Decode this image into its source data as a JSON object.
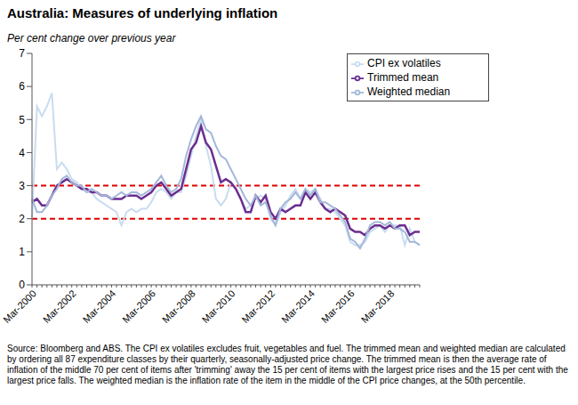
{
  "chart_data": {
    "type": "line",
    "title": "Australia: Measures of underlying inflation",
    "y_label": "Per cent change over previous year",
    "note": "Source: Bloomberg and ABS. The CPI ex volatiles excludes fruit, vegetables and fuel. The trimmed mean and weighted median are calculated by ordering all 87 expenditure classes by their quarterly, seasonally-adjusted price change. The trimmed mean is then the average rate of inflation of the middle 70 per cent of items after 'trimming' away the 15 per cent of items with the largest price rises and the 15 per cent with the largest price falls. The weighted median is the inflation rate of the item in the middle of the CPI price changes, at the 50th percentile.",
    "categories": [
      "Mar-2000",
      null,
      null,
      null,
      null,
      null,
      null,
      null,
      "Mar-2002",
      null,
      null,
      null,
      null,
      null,
      null,
      null,
      "Mar-2004",
      null,
      null,
      null,
      null,
      null,
      null,
      null,
      "Mar-2006",
      null,
      null,
      null,
      null,
      null,
      null,
      null,
      "Mar-2008",
      null,
      null,
      null,
      null,
      null,
      null,
      null,
      "Mar-2010",
      null,
      null,
      null,
      null,
      null,
      null,
      null,
      "Mar-2012",
      null,
      null,
      null,
      null,
      null,
      null,
      null,
      "Mar-2014",
      null,
      null,
      null,
      null,
      null,
      null,
      null,
      "Mar-2016",
      null,
      null,
      null,
      null,
      null,
      null,
      null,
      "Mar-2018",
      null,
      null,
      null,
      null,
      null,
      null
    ],
    "series": [
      {
        "name": "CPI ex volatiles",
        "color": "#c9dcf0",
        "values": [
          2.0,
          5.4,
          5.1,
          5.4,
          5.8,
          3.5,
          3.7,
          3.5,
          3.2,
          3.1,
          2.9,
          2.8,
          2.8,
          2.6,
          2.5,
          2.4,
          2.3,
          2.2,
          1.8,
          2.2,
          2.3,
          2.2,
          2.3,
          2.3,
          2.5,
          2.8,
          2.9,
          2.8,
          2.6,
          2.8,
          2.8,
          3.3,
          3.9,
          4.5,
          5.0,
          4.2,
          3.6,
          2.6,
          2.4,
          2.6,
          3.1,
          2.9,
          2.6,
          2.3,
          2.4,
          2.6,
          2.7,
          2.6,
          2.0,
          1.8,
          2.2,
          2.4,
          2.7,
          2.9,
          2.6,
          2.9,
          2.8,
          2.9,
          2.6,
          2.3,
          2.3,
          2.2,
          2.0,
          1.8,
          1.3,
          1.2,
          1.2,
          1.3,
          1.6,
          1.7,
          1.8,
          1.6,
          1.8,
          1.8,
          1.8,
          1.2,
          1.7,
          1.3,
          1.2
        ]
      },
      {
        "name": "Trimmed mean",
        "color": "#6b2d8f",
        "values": [
          2.5,
          2.6,
          2.4,
          2.4,
          2.7,
          3.0,
          3.1,
          3.2,
          3.1,
          3.0,
          2.9,
          2.9,
          2.8,
          2.8,
          2.7,
          2.7,
          2.6,
          2.6,
          2.6,
          2.7,
          2.7,
          2.7,
          2.6,
          2.7,
          2.8,
          3.0,
          3.1,
          2.9,
          2.7,
          2.8,
          2.9,
          3.5,
          4.1,
          4.3,
          4.8,
          4.3,
          4.1,
          3.6,
          3.1,
          3.2,
          3.1,
          2.9,
          2.6,
          2.2,
          2.2,
          2.7,
          2.5,
          2.7,
          2.2,
          2.0,
          2.3,
          2.2,
          2.3,
          2.4,
          2.4,
          2.8,
          2.6,
          2.8,
          2.5,
          2.3,
          2.2,
          2.3,
          2.2,
          2.1,
          1.7,
          1.6,
          1.6,
          1.5,
          1.7,
          1.8,
          1.8,
          1.7,
          1.8,
          1.7,
          1.8,
          1.8,
          1.5,
          1.6,
          1.6
        ]
      },
      {
        "name": "Weighted median",
        "color": "#a3b7d9",
        "values": [
          2.6,
          2.2,
          2.2,
          2.4,
          2.7,
          2.9,
          3.2,
          3.3,
          3.1,
          3.0,
          3.0,
          2.8,
          2.9,
          2.8,
          2.7,
          2.7,
          2.6,
          2.7,
          2.8,
          2.7,
          2.8,
          2.8,
          2.7,
          2.8,
          2.9,
          3.1,
          3.3,
          3.0,
          2.8,
          2.9,
          3.2,
          3.9,
          4.4,
          4.8,
          5.1,
          4.7,
          4.6,
          4.2,
          3.9,
          3.8,
          3.5,
          3.2,
          2.9,
          2.6,
          2.4,
          2.7,
          2.4,
          2.5,
          2.1,
          1.8,
          2.3,
          2.5,
          2.6,
          2.8,
          2.6,
          2.9,
          2.7,
          2.9,
          2.5,
          2.5,
          2.4,
          2.3,
          2.1,
          1.9,
          1.4,
          1.3,
          1.1,
          1.4,
          1.8,
          1.9,
          1.9,
          1.8,
          1.9,
          1.7,
          1.7,
          1.6,
          1.3,
          1.3,
          1.2
        ]
      }
    ],
    "reference_lines": [
      2,
      3
    ],
    "reference_color": "#e00000",
    "ylim": [
      0,
      7
    ],
    "yticks": [
      0,
      1,
      2,
      3,
      4,
      5,
      6,
      7
    ],
    "grid": false,
    "legend": "upper right"
  }
}
